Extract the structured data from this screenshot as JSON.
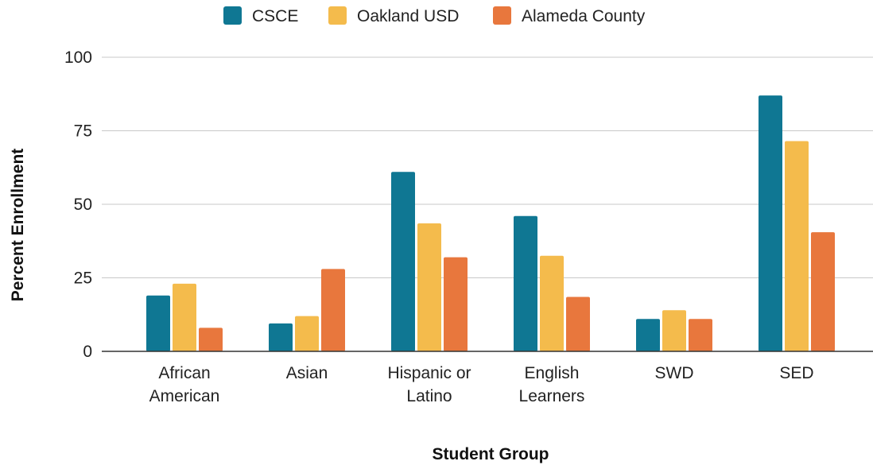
{
  "chart_data": {
    "type": "bar",
    "title": "",
    "xlabel": "Student Group",
    "ylabel": "Percent Enrollment",
    "categories": [
      [
        "African",
        "American"
      ],
      [
        "Asian"
      ],
      [
        "Hispanic or",
        "Latino"
      ],
      [
        "English",
        "Learners"
      ],
      [
        "SWD"
      ],
      [
        "SED"
      ]
    ],
    "series": [
      {
        "name": "CSCE",
        "color": "#0f7793",
        "values": [
          19,
          9.5,
          61,
          46,
          11,
          87
        ]
      },
      {
        "name": "Oakland USD",
        "color": "#f4bb4c",
        "values": [
          23,
          12,
          43.5,
          32.5,
          14,
          71.5
        ]
      },
      {
        "name": "Alameda County",
        "color": "#e8773d",
        "values": [
          8,
          28,
          32,
          18.5,
          11,
          40.5
        ]
      }
    ],
    "ylim": [
      0,
      100
    ],
    "yticks": [
      0,
      25,
      50,
      75,
      100
    ],
    "grid": true,
    "legend": "top-center"
  }
}
